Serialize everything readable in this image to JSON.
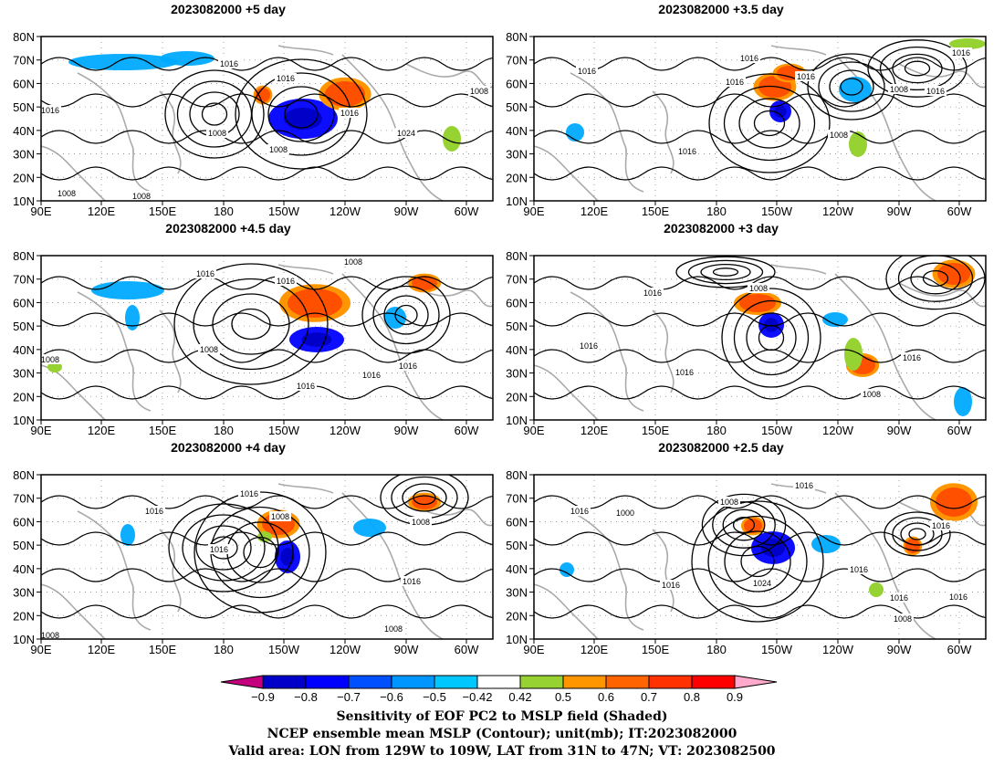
{
  "panels": [
    {
      "title": "2023082000  +5 day",
      "contour_labels": [
        "1016",
        "1016",
        "1016",
        "1016",
        "1008",
        "1008",
        "1024",
        "1008",
        "1008",
        "1008"
      ]
    },
    {
      "title": "2023082000  +3.5 day",
      "contour_labels": [
        "1016",
        "1016",
        "1016",
        "1016",
        "1008",
        "1016",
        "1016",
        "1008",
        "1016"
      ]
    },
    {
      "title": "2023082000  +4.5 day",
      "contour_labels": [
        "1016",
        "1016",
        "1008",
        "1008",
        "1008",
        "1016",
        "1016",
        "1016"
      ]
    },
    {
      "title": "2023082000  +3 day",
      "contour_labels": [
        "1016",
        "1008",
        "1016",
        "1016",
        "1016",
        "1008"
      ]
    },
    {
      "title": "2023082000  +4 day",
      "contour_labels": [
        "1016",
        "1016",
        "1008",
        "1016",
        "1008",
        "1016",
        "1008",
        "1008"
      ]
    },
    {
      "title": "2023082000  +2.5 day",
      "contour_labels": [
        "1016",
        "1008",
        "1016",
        "1000",
        "1016",
        "1016",
        "1024",
        "1016",
        "1016",
        "1016",
        "1008"
      ]
    }
  ],
  "axes": {
    "lat_labels": [
      "80N",
      "70N",
      "60N",
      "50N",
      "40N",
      "30N",
      "20N",
      "10N"
    ],
    "lon_labels": [
      "90E",
      "120E",
      "150E",
      "180",
      "150W",
      "120W",
      "90W",
      "60W"
    ]
  },
  "colorbar": {
    "tick_labels": [
      "−0.9",
      "−0.8",
      "−0.7",
      "−0.6",
      "−0.5",
      "−0.42",
      "0.42",
      "0.5",
      "0.6",
      "0.7",
      "0.8",
      "0.9"
    ],
    "colors": [
      "#c4007f",
      "#0000c8",
      "#0000ff",
      "#0050ff",
      "#0096ff",
      "#00c8ff",
      "#ffffff",
      "#96d232",
      "#ff9600",
      "#ff6400",
      "#ff3200",
      "#ff0000",
      "#ffaacc"
    ]
  },
  "captions": [
    "Sensitivity of EOF PC2 to MSLP field (Shaded)",
    "NCEP ensemble mean MSLP (Contour); unit(mb); IT:2023082000",
    "Valid area: LON from 129W to 109W, LAT from 31N to 47N; VT: 2023082500"
  ]
}
